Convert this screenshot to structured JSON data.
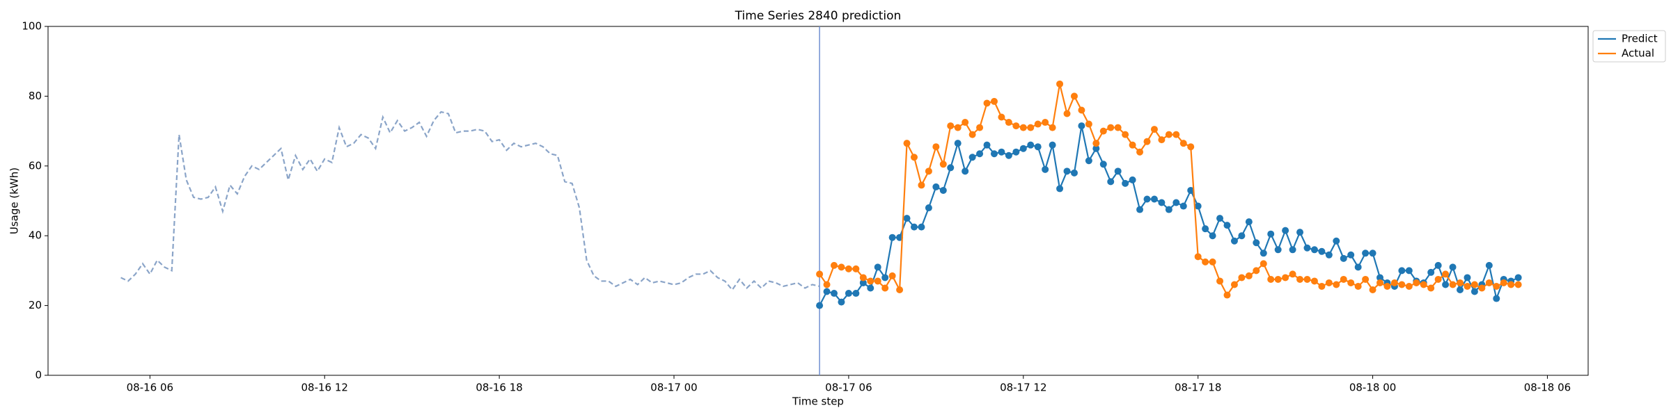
{
  "chart_data": {
    "type": "line",
    "title": "Time Series 2840 prediction",
    "xlabel": "Time step",
    "ylabel": "Usage (kWh)",
    "xlim": [
      2.5,
      55.4
    ],
    "xticks": [
      {
        "value": 6,
        "label": "08-16 06"
      },
      {
        "value": 12,
        "label": "08-16 12"
      },
      {
        "value": 18,
        "label": "08-16 18"
      },
      {
        "value": 24,
        "label": "08-17 00"
      },
      {
        "value": 30,
        "label": "08-17 06"
      },
      {
        "value": 36,
        "label": "08-17 12"
      },
      {
        "value": 42,
        "label": "08-17 18"
      },
      {
        "value": 48,
        "label": "08-18 00"
      },
      {
        "value": 54,
        "label": "08-18 06"
      }
    ],
    "ylim": [
      0,
      100
    ],
    "yticks": [
      0,
      20,
      40,
      60,
      80,
      100
    ],
    "grid": false,
    "legend": "upper right outside",
    "forecast_start": 29,
    "forecast_line_color": "#6f8fd0",
    "history": {
      "color": "#8aa4c8",
      "dashed": true,
      "x": [
        5,
        5.25,
        5.5,
        5.75,
        6,
        6.25,
        6.5,
        6.75,
        7,
        7.25,
        7.5,
        7.75,
        8,
        8.25,
        8.5,
        8.75,
        9,
        9.25,
        9.5,
        9.75,
        10,
        10.25,
        10.5,
        10.75,
        11,
        11.25,
        11.5,
        11.75,
        12,
        12.25,
        12.5,
        12.75,
        13,
        13.25,
        13.5,
        13.75,
        14,
        14.25,
        14.5,
        14.75,
        15,
        15.25,
        15.5,
        15.75,
        16,
        16.25,
        16.5,
        16.75,
        17,
        17.25,
        17.5,
        17.75,
        18,
        18.25,
        18.5,
        18.75,
        19,
        19.25,
        19.5,
        19.75,
        20,
        20.25,
        20.5,
        20.75,
        21,
        21.25,
        21.5,
        21.75,
        22,
        22.25,
        22.5,
        22.75,
        23,
        23.25,
        23.5,
        23.75,
        24,
        24.25,
        24.5,
        24.75,
        25,
        25.25,
        25.5,
        25.75,
        26,
        26.25,
        26.5,
        26.75,
        27,
        27.25,
        27.5,
        27.75,
        28,
        28.25,
        28.5,
        28.75,
        29
      ],
      "values": [
        28,
        27,
        29,
        32,
        29,
        33,
        31,
        30,
        69,
        56,
        51,
        50.5,
        51,
        54,
        47,
        54.5,
        52,
        57,
        60,
        59,
        61,
        63,
        65,
        56,
        63,
        59,
        62,
        58.5,
        62,
        61,
        71,
        65.5,
        66.5,
        69,
        68,
        65,
        74,
        69.5,
        73,
        70,
        71,
        72.5,
        68.5,
        73,
        75.5,
        75,
        69.5,
        70,
        70,
        70.5,
        70,
        67,
        67.5,
        64.5,
        66.5,
        65.5,
        66,
        66.5,
        65.5,
        63.5,
        63,
        55.5,
        55,
        48,
        33,
        28.5,
        27,
        27,
        25.5,
        26.5,
        27.5,
        26,
        28,
        26.5,
        27,
        26.5,
        26,
        26.5,
        28,
        29,
        29,
        30,
        28,
        27,
        24.5,
        27.5,
        25,
        27,
        25,
        27,
        26.5,
        25.5,
        26,
        26.5,
        25,
        26,
        25.5
      ]
    },
    "series": [
      {
        "name": "Predict",
        "color": "#1f77b4",
        "x": [
          29,
          29.25,
          29.5,
          29.75,
          30,
          30.25,
          30.5,
          30.75,
          31,
          31.25,
          31.5,
          31.75,
          32,
          32.25,
          32.5,
          32.75,
          33,
          33.25,
          33.5,
          33.75,
          34,
          34.25,
          34.5,
          34.75,
          35,
          35.25,
          35.5,
          35.75,
          36,
          36.25,
          36.5,
          36.75,
          37,
          37.25,
          37.5,
          37.75,
          38,
          38.25,
          38.5,
          38.75,
          39,
          39.25,
          39.5,
          39.75,
          40,
          40.25,
          40.5,
          40.75,
          41,
          41.25,
          41.5,
          41.75,
          42,
          42.25,
          42.5,
          42.75,
          43,
          43.25,
          43.5,
          43.75,
          44,
          44.25,
          44.5,
          44.75,
          45,
          45.25,
          45.5,
          45.75,
          46,
          46.25,
          46.5,
          46.75,
          47,
          47.25,
          47.5,
          47.75,
          48,
          48.25,
          48.5,
          48.75,
          49,
          49.25,
          49.5,
          49.75,
          50,
          50.25,
          50.5,
          50.75,
          51,
          51.25,
          51.5,
          51.75,
          52,
          52.25,
          52.5,
          52.75,
          53
        ],
        "values": [
          20,
          24,
          23.5,
          21,
          23.5,
          23.5,
          26.5,
          25,
          31,
          28,
          39.5,
          39.5,
          45,
          42.5,
          42.5,
          48,
          54,
          53,
          59.5,
          66.5,
          58.5,
          62.5,
          63.5,
          66,
          63.5,
          64,
          63,
          64,
          65,
          66,
          65.5,
          59,
          66,
          53.5,
          58.5,
          58,
          71.5,
          61.5,
          65,
          60.5,
          55.5,
          58.5,
          55,
          56,
          47.5,
          50.5,
          50.5,
          49.5,
          47.5,
          49.5,
          48.5,
          53,
          48.5,
          42,
          40,
          45,
          43,
          38.5,
          40,
          44,
          38,
          35,
          40.5,
          36,
          41.5,
          36,
          41,
          36.5,
          36,
          35.5,
          34.5,
          38.5,
          33.5,
          34.5,
          31,
          35,
          35,
          28,
          26.5,
          25.5,
          30,
          30,
          27,
          26.5,
          29.5,
          31.5,
          26,
          31,
          24.5,
          28,
          24,
          26,
          31.5,
          22,
          27.5,
          27,
          28
        ]
      },
      {
        "name": "Actual",
        "color": "#ff7f0e",
        "x": [
          29,
          29.25,
          29.5,
          29.75,
          30,
          30.25,
          30.5,
          30.75,
          31,
          31.25,
          31.5,
          31.75,
          32,
          32.25,
          32.5,
          32.75,
          33,
          33.25,
          33.5,
          33.75,
          34,
          34.25,
          34.5,
          34.75,
          35,
          35.25,
          35.5,
          35.75,
          36,
          36.25,
          36.5,
          36.75,
          37,
          37.25,
          37.5,
          37.75,
          38,
          38.25,
          38.5,
          38.75,
          39,
          39.25,
          39.5,
          39.75,
          40,
          40.25,
          40.5,
          40.75,
          41,
          41.25,
          41.5,
          41.75,
          42,
          42.25,
          42.5,
          42.75,
          43,
          43.25,
          43.5,
          43.75,
          44,
          44.25,
          44.5,
          44.75,
          45,
          45.25,
          45.5,
          45.75,
          46,
          46.25,
          46.5,
          46.75,
          47,
          47.25,
          47.5,
          47.75,
          48,
          48.25,
          48.5,
          48.75,
          49,
          49.25,
          49.5,
          49.75,
          50,
          50.25,
          50.5,
          50.75,
          51,
          51.25,
          51.5,
          51.75,
          52,
          52.25,
          52.5,
          52.75,
          53
        ],
        "values": [
          29,
          26,
          31.5,
          31,
          30.5,
          30.5,
          28,
          27,
          27,
          25,
          28.5,
          24.5,
          66.5,
          62.5,
          54.5,
          58.5,
          65.5,
          60.5,
          71.5,
          71,
          72.5,
          69,
          71,
          78,
          78.5,
          74,
          72.5,
          71.5,
          71,
          71,
          72,
          72.5,
          71,
          83.5,
          75,
          80,
          76,
          72,
          66.5,
          70,
          71,
          71,
          69,
          66,
          64,
          67,
          70.5,
          67.5,
          69,
          69,
          66.5,
          65.5,
          34,
          32.5,
          32.5,
          27,
          23,
          26,
          28,
          28.5,
          30,
          32,
          27.5,
          27.5,
          28,
          29,
          27.5,
          27.5,
          27,
          25.5,
          26.5,
          26,
          27.5,
          26.5,
          25.5,
          27.5,
          24.5,
          26.5,
          25.5,
          26.5,
          26,
          25.5,
          26.5,
          26,
          25,
          27.5,
          29,
          26,
          26.5,
          25.5,
          26,
          25,
          26.5,
          25.5,
          26.5,
          26,
          26
        ]
      }
    ]
  }
}
